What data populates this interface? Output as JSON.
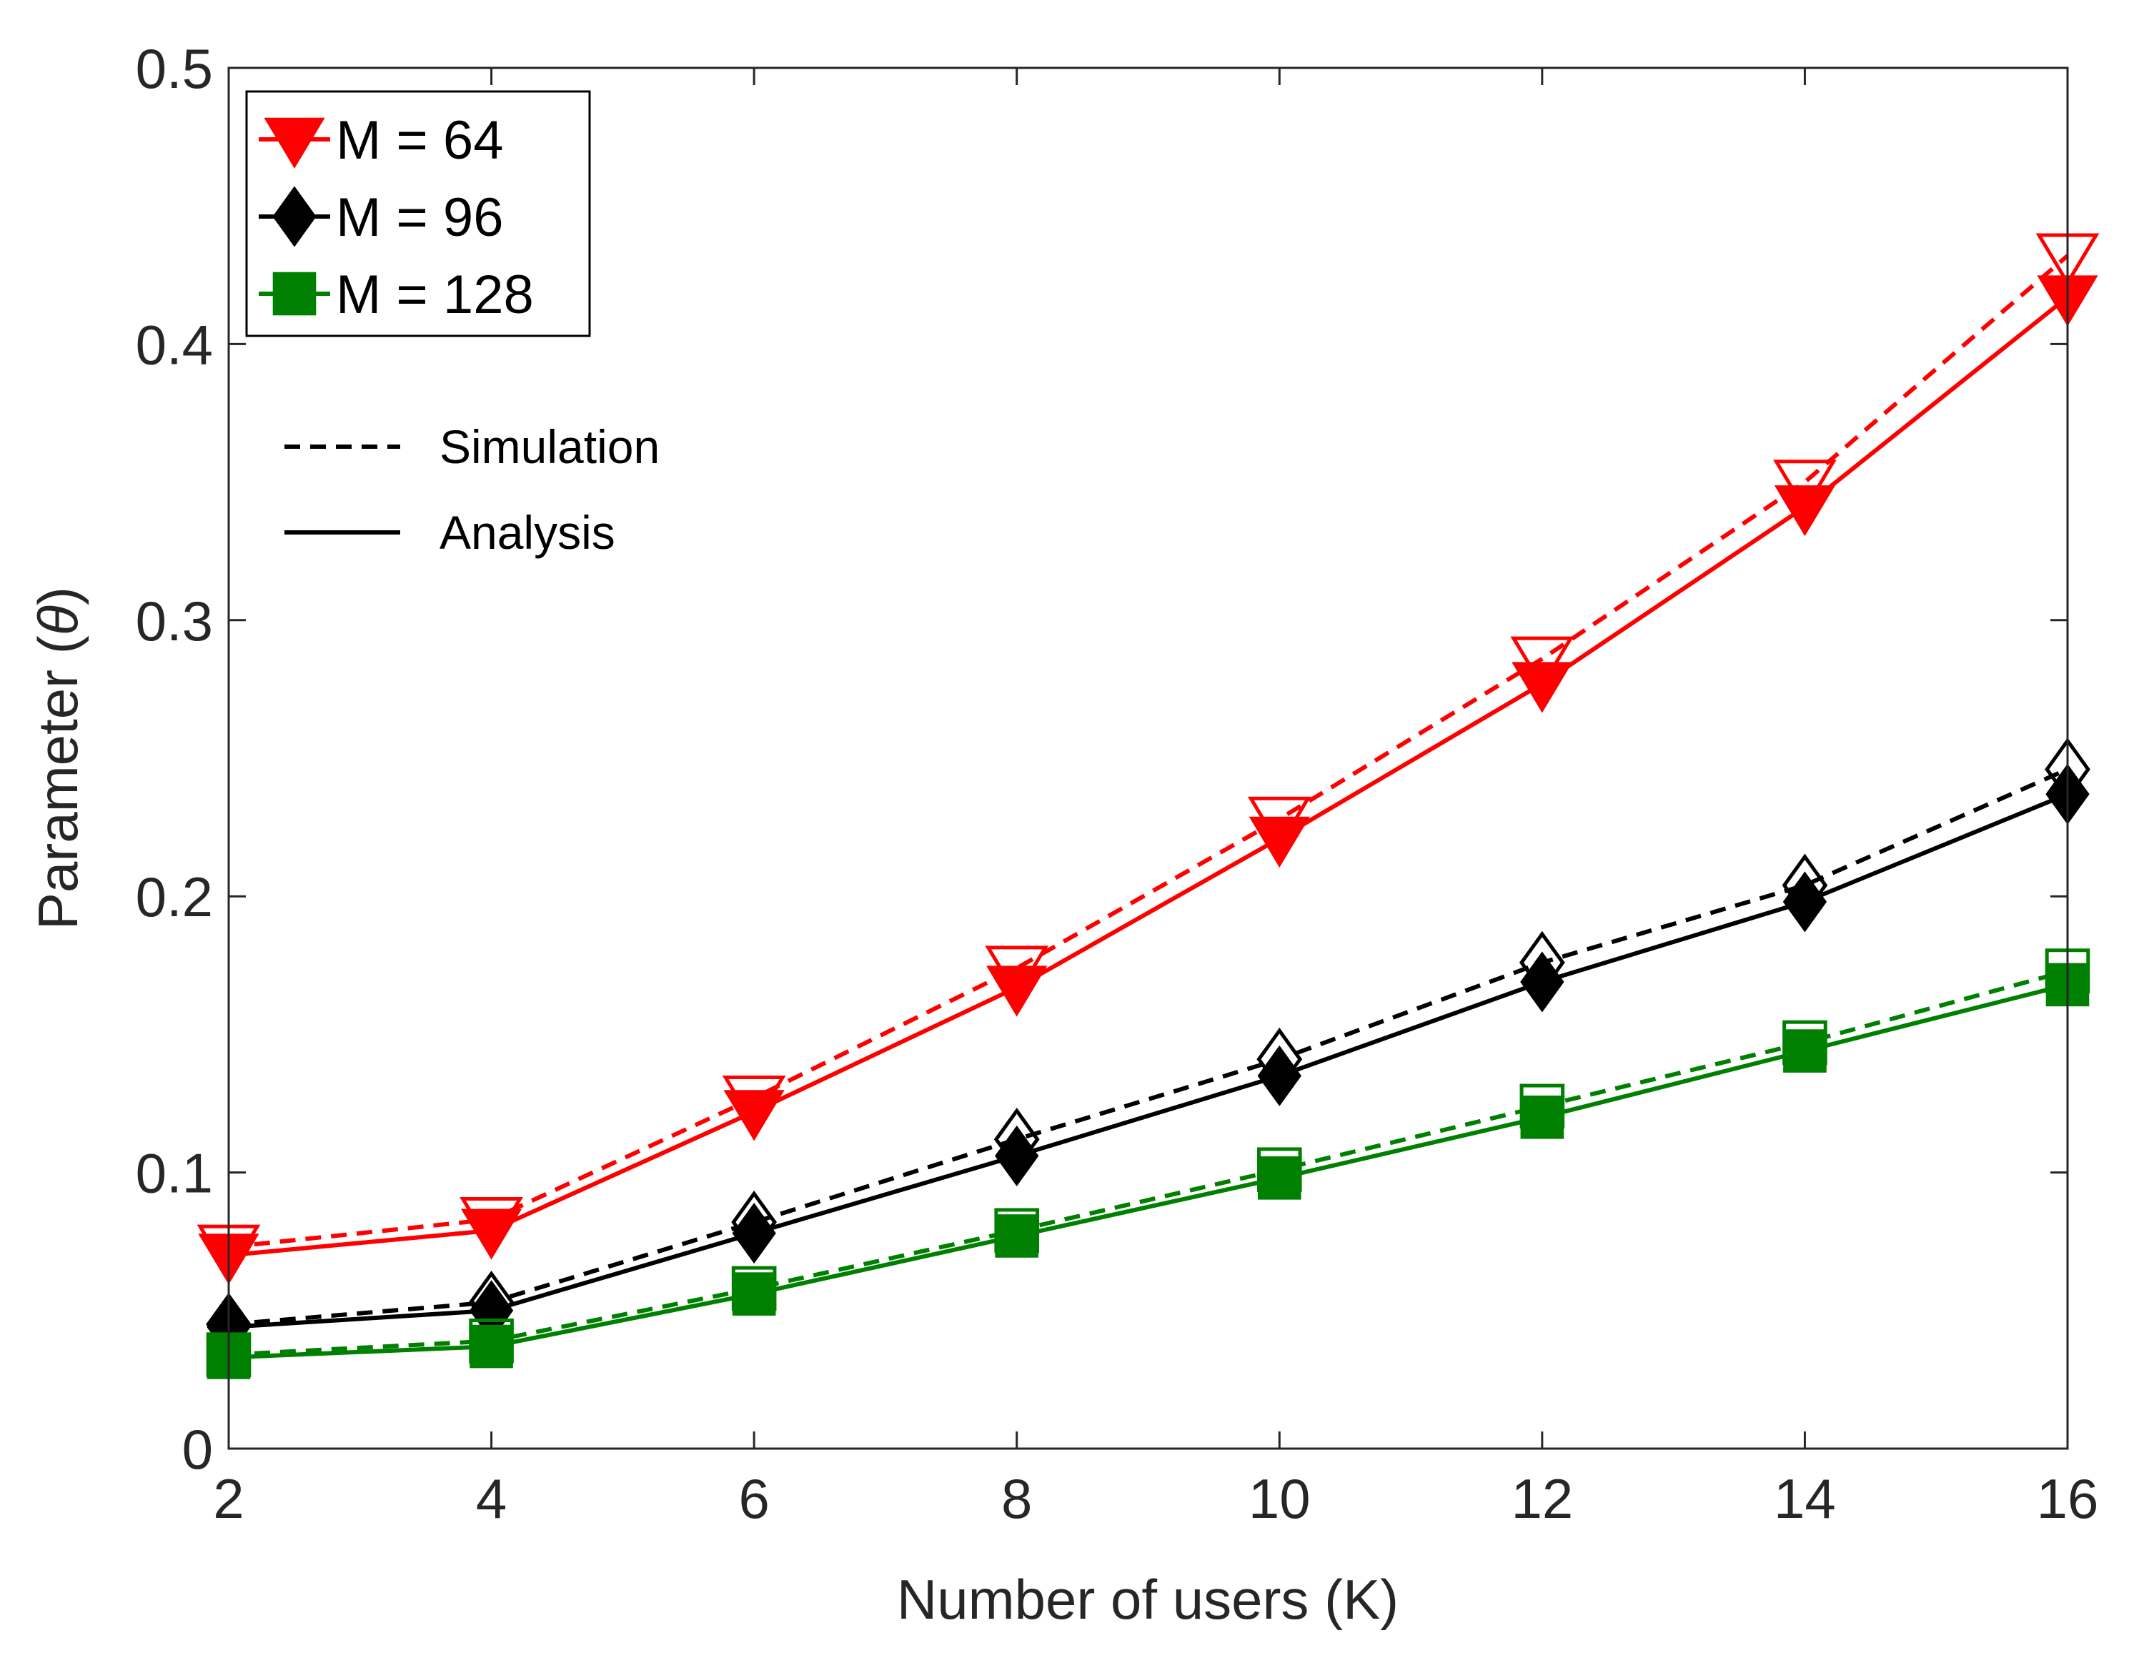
{
  "chart_data": {
    "type": "line",
    "xlabel": "Number of users (K)",
    "ylabel_main": "Parameter (",
    "ylabel_symbol": "θ",
    "ylabel_close": ")",
    "xlim": [
      2,
      16
    ],
    "ylim": [
      0,
      0.5
    ],
    "xticks": [
      2,
      4,
      6,
      8,
      10,
      12,
      14,
      16
    ],
    "yticks": [
      0,
      0.1,
      0.2,
      0.3,
      0.4,
      0.5
    ],
    "ytick_labels": [
      "0",
      "0.1",
      "0.2",
      "0.3",
      "0.4",
      "0.5"
    ],
    "grid": false,
    "x": [
      2,
      4,
      6,
      8,
      10,
      12,
      14,
      16
    ],
    "series": [
      {
        "name": "M = 64",
        "color": "#ff0000",
        "marker": "triangle-down",
        "simulation": [
          0.073,
          0.083,
          0.127,
          0.174,
          0.228,
          0.286,
          0.35,
          0.432
        ],
        "analysis": [
          0.07,
          0.079,
          0.122,
          0.167,
          0.221,
          0.277,
          0.341,
          0.417
        ]
      },
      {
        "name": "M = 96",
        "color": "#000000",
        "marker": "diamond",
        "simulation": [
          0.045,
          0.053,
          0.082,
          0.112,
          0.141,
          0.176,
          0.204,
          0.246
        ],
        "analysis": [
          0.044,
          0.05,
          0.078,
          0.106,
          0.135,
          0.169,
          0.198,
          0.237
        ]
      },
      {
        "name": "M = 128",
        "color": "#008000",
        "marker": "square",
        "simulation": [
          0.034,
          0.039,
          0.058,
          0.079,
          0.101,
          0.124,
          0.147,
          0.173
        ],
        "analysis": [
          0.033,
          0.037,
          0.056,
          0.077,
          0.098,
          0.12,
          0.144,
          0.168
        ]
      }
    ],
    "legend": {
      "placement": "top-left",
      "entries": [
        "M = 64",
        "M = 96",
        "M = 128"
      ],
      "style_entries": [
        {
          "label": "Simulation",
          "line": "dashed"
        },
        {
          "label": "Analysis",
          "line": "solid"
        }
      ]
    }
  }
}
